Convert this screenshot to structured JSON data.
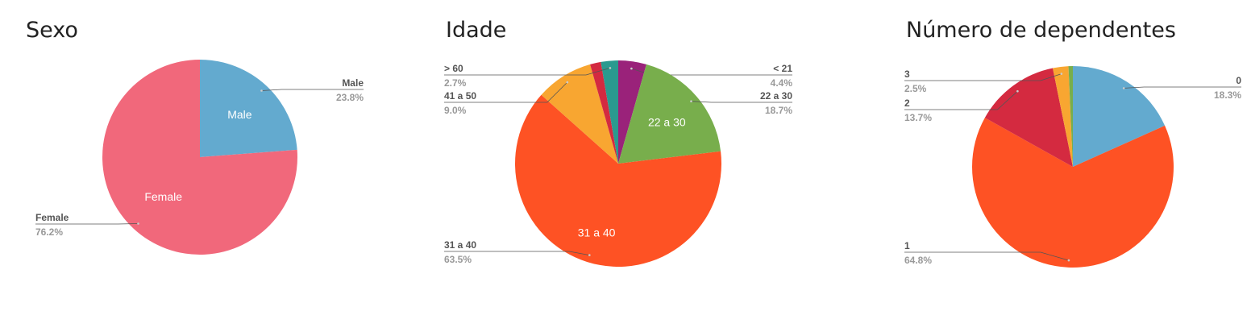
{
  "chart_data": [
    {
      "type": "pie",
      "title": "Sexo",
      "slices": [
        {
          "label": "Male",
          "value": 23.8,
          "display": "23.8%",
          "color": "#63aacf",
          "inner": "Male"
        },
        {
          "label": "Female",
          "value": 76.2,
          "display": "76.2%",
          "color": "#f1687b",
          "inner": "Female"
        }
      ]
    },
    {
      "type": "pie",
      "title": "Idade",
      "slices": [
        {
          "label": "< 21",
          "value": 4.4,
          "display": "4.4%",
          "color": "#9a227a",
          "inner": ""
        },
        {
          "label": "22 a 30",
          "value": 18.7,
          "display": "18.7%",
          "color": "#78ae4c",
          "inner": "22 a 30"
        },
        {
          "label": "31 a 40",
          "value": 63.5,
          "display": "63.5%",
          "color": "#fe5224",
          "inner": "31 a 40"
        },
        {
          "label": "41 a 50",
          "value": 9.0,
          "display": "9.0%",
          "color": "#f8a631",
          "inner": ""
        },
        {
          "label": "",
          "value": 1.7,
          "display": "",
          "color": "#d42a40",
          "inner": ""
        },
        {
          "label": "> 60",
          "value": 2.7,
          "display": "2.7%",
          "color": "#2a9a8f",
          "inner": ""
        }
      ]
    },
    {
      "type": "pie",
      "title": "Número de dependentes",
      "slices": [
        {
          "label": "0",
          "value": 18.3,
          "display": "18.3%",
          "color": "#63aacf",
          "inner": ""
        },
        {
          "label": "1",
          "value": 64.8,
          "display": "64.8%",
          "color": "#fe5224",
          "inner": ""
        },
        {
          "label": "2",
          "value": 13.7,
          "display": "13.7%",
          "color": "#d42a40",
          "inner": ""
        },
        {
          "label": "3",
          "value": 2.5,
          "display": "2.5%",
          "color": "#f8a631",
          "inner": ""
        },
        {
          "label": "",
          "value": 0.7,
          "display": "",
          "color": "#78ae4c",
          "inner": ""
        }
      ]
    }
  ]
}
